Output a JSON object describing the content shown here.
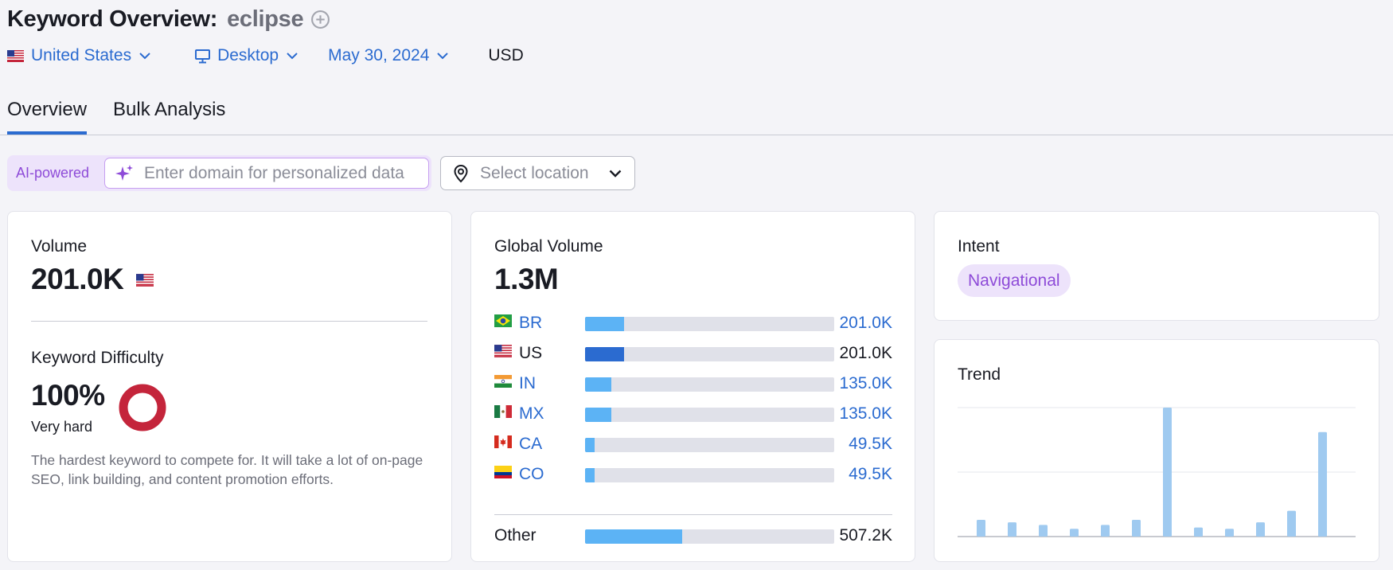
{
  "header": {
    "title": "Keyword Overview:",
    "keyword": "eclipse",
    "add_icon": "plus-circle-icon"
  },
  "filters": {
    "country": "United States",
    "device": "Desktop",
    "date": "May 30, 2024",
    "currency": "USD"
  },
  "tabs": [
    {
      "label": "Overview",
      "active": true
    },
    {
      "label": "Bulk Analysis",
      "active": false
    }
  ],
  "personalization": {
    "ai_label": "AI-powered",
    "domain_placeholder": "Enter domain for personalized data",
    "location_placeholder": "Select location"
  },
  "volume": {
    "label": "Volume",
    "value": "201.0K",
    "country_flag": "us-flag"
  },
  "keyword_difficulty": {
    "label": "Keyword Difficulty",
    "value": "100%",
    "level": "Very hard",
    "description": "The hardest keyword to compete for. It will take a lot of on-page SEO, link building, and content promotion efforts.",
    "ring_color": "#c4253b",
    "fraction": 1.0
  },
  "global_volume": {
    "label": "Global Volume",
    "value": "1.3M",
    "rows": [
      {
        "code": "BR",
        "value": "201.0K",
        "share": 0.155,
        "link": true
      },
      {
        "code": "US",
        "value": "201.0K",
        "share": 0.155,
        "link": false
      },
      {
        "code": "IN",
        "value": "135.0K",
        "share": 0.104,
        "link": true
      },
      {
        "code": "MX",
        "value": "135.0K",
        "share": 0.104,
        "link": true
      },
      {
        "code": "CA",
        "value": "49.5K",
        "share": 0.038,
        "link": true
      },
      {
        "code": "CO",
        "value": "49.5K",
        "share": 0.038,
        "link": true
      }
    ],
    "other": {
      "code": "Other",
      "value": "507.2K",
      "share": 0.39
    }
  },
  "intent": {
    "label": "Intent",
    "value": "Navigational"
  },
  "trend": {
    "label": "Trend",
    "values": [
      0.13,
      0.11,
      0.09,
      0.06,
      0.09,
      0.13,
      1.0,
      0.07,
      0.06,
      0.11,
      0.2,
      0.81
    ]
  },
  "colors": {
    "accent": "#2b6bd0",
    "bar_fill": "#5cb3f5",
    "trend_bar": "#9fcaf0",
    "intent_bg": "#ede3fb",
    "intent_text": "#8e4bd8"
  }
}
